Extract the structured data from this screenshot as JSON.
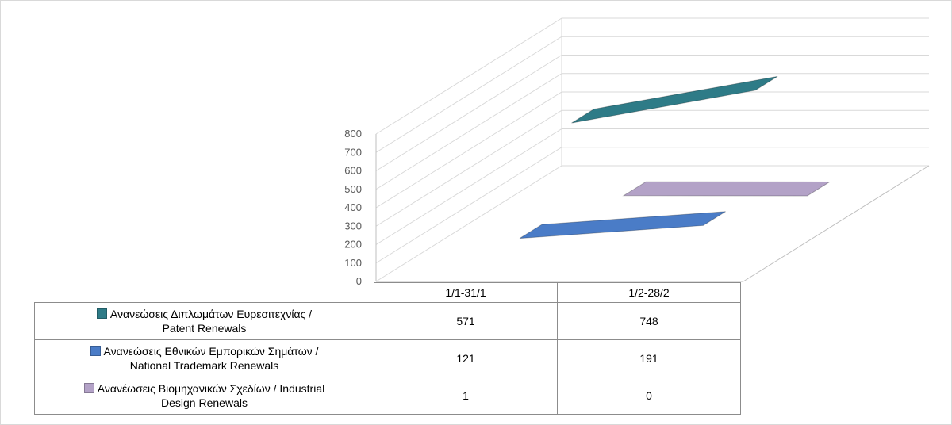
{
  "chart_data": {
    "type": "line",
    "subtype": "3d-line",
    "categories": [
      "1/1-31/1",
      "1/2-28/2"
    ],
    "series": [
      {
        "name": "Ανανεώσεις Διπλωμάτων Ευρεσιτεχνίας  / Patent Renewals",
        "name_line1": "Ανανεώσεις Διπλωμάτων Ευρεσιτεχνίας  /",
        "name_line2": "Patent Renewals",
        "values": [
          571,
          748
        ],
        "value_labels": [
          "571",
          "748"
        ],
        "color": "#2e7b87"
      },
      {
        "name": "Ανανεώσεις Εθνικών Εμπορικών Σημάτων / National Trademark Renewals",
        "name_line1": "Ανανεώσεις Εθνικών Εμπορικών Σημάτων /",
        "name_line2": "National Trademark Renewals",
        "values": [
          121,
          191
        ],
        "value_labels": [
          "121",
          "191"
        ],
        "color": "#4a7cc7"
      },
      {
        "name": "Ανανέωσεις Βιομηχανικών Σχεδίων / Industrial Design Renewals",
        "name_line1": "Ανανέωσεις Βιομηχανικών Σχεδίων / Industrial",
        "name_line2": "Design Renewals",
        "values": [
          1,
          0
        ],
        "value_labels": [
          "1",
          "0"
        ],
        "color": "#b3a2c7"
      }
    ],
    "ylim": [
      0,
      800
    ],
    "yticks": [
      "0",
      "100",
      "200",
      "300",
      "400",
      "500",
      "600",
      "700",
      "800"
    ],
    "grid": true,
    "legend": "data-table"
  }
}
